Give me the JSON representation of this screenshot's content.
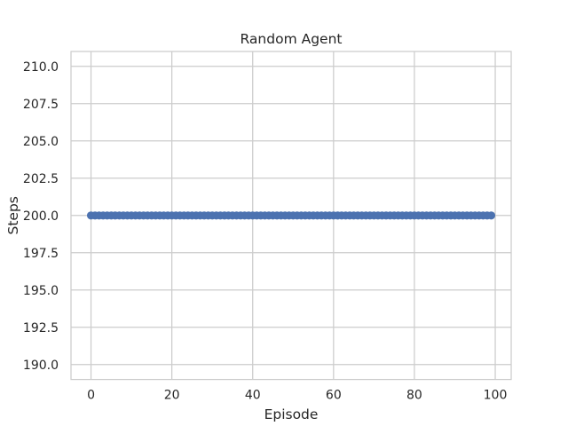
{
  "chart_data": {
    "type": "line",
    "title": "Random Agent",
    "xlabel": "Episode",
    "ylabel": "Steps",
    "xlim": [
      -4.95,
      103.95
    ],
    "ylim": [
      189.0,
      211.0
    ],
    "xticks": [
      0,
      20,
      40,
      60,
      80,
      100
    ],
    "yticks": [
      190.0,
      192.5,
      195.0,
      197.5,
      200.0,
      202.5,
      205.0,
      207.5,
      210.0
    ],
    "grid": true,
    "marker": "circle",
    "series_color": "#4c72b0",
    "series": [
      {
        "x_start": 0,
        "x_end": 99,
        "y": [
          200,
          200,
          200,
          200,
          200,
          200,
          200,
          200,
          200,
          200,
          200,
          200,
          200,
          200,
          200,
          200,
          200,
          200,
          200,
          200,
          200,
          200,
          200,
          200,
          200,
          200,
          200,
          200,
          200,
          200,
          200,
          200,
          200,
          200,
          200,
          200,
          200,
          200,
          200,
          200,
          200,
          200,
          200,
          200,
          200,
          200,
          200,
          200,
          200,
          200,
          200,
          200,
          200,
          200,
          200,
          200,
          200,
          200,
          200,
          200,
          200,
          200,
          200,
          200,
          200,
          200,
          200,
          200,
          200,
          200,
          200,
          200,
          200,
          200,
          200,
          200,
          200,
          200,
          200,
          200,
          200,
          200,
          200,
          200,
          200,
          200,
          200,
          200,
          200,
          200,
          200,
          200,
          200,
          200,
          200,
          200,
          200,
          200,
          200,
          200
        ]
      }
    ]
  }
}
